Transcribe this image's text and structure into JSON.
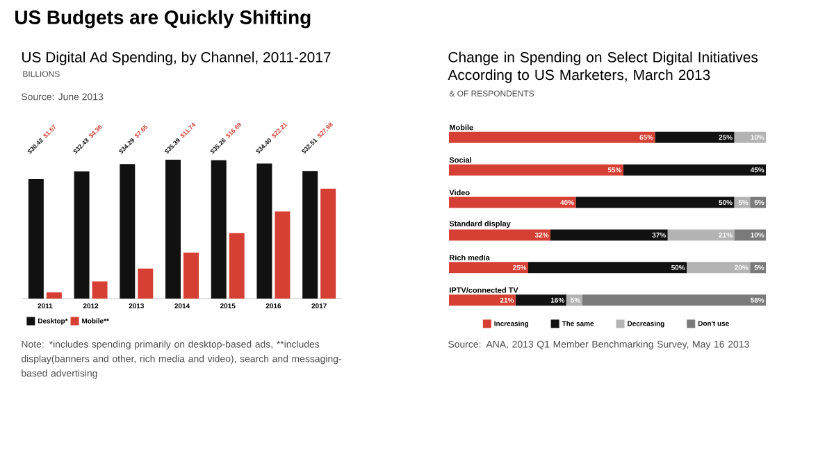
{
  "chart_data": [
    {
      "type": "bar",
      "title": "US Digital Ad Spending, by Channel, 2011-2017",
      "subtitle": "BILLIONS",
      "categories": [
        "2011",
        "2012",
        "2013",
        "2014",
        "2015",
        "2016",
        "2017"
      ],
      "series": [
        {
          "name": "Desktop*",
          "color": "#111111",
          "values": [
            30.42,
            32.43,
            34.29,
            35.39,
            35.26,
            34.4,
            32.51
          ],
          "value_labels": [
            "$30.42",
            "$32.43",
            "$34.29",
            "$35.39",
            "$35.26",
            "$34.40",
            "$32.51"
          ]
        },
        {
          "name": "Mobile**",
          "color": "#d63f33",
          "values": [
            1.57,
            4.36,
            7.65,
            11.74,
            16.69,
            22.21,
            27.98
          ],
          "value_labels": [
            "$1.57",
            "$4.36",
            "$7.65",
            "$11.74",
            "$16.69",
            "$22.21",
            "$27.98"
          ]
        }
      ],
      "legend": "bottom left",
      "annotations": [
        "US Budgets are Quickly Shifting",
        "Source: June 2013",
        "Note: *includes spending primarily on desktop-based ads, **includes display(banners and other, rich media and video), search and messaging-based advertising"
      ]
    },
    {
      "type": "bar",
      "orientation": "horizontal",
      "stacked": true,
      "title": "Change in Spending on Select Digital Initiatives According to US Marketers, March 2013",
      "subtitle": "& OF RESPONDENTS",
      "categories": [
        "Mobile",
        "Social",
        "Video",
        "Standard display",
        "Rich media",
        "IPTV/connected TV"
      ],
      "series": [
        {
          "name": "Increasing",
          "color": "#d63f33",
          "values": [
            65,
            55,
            40,
            32,
            25,
            21
          ],
          "value_labels": [
            "65%",
            "55%",
            "40%",
            "32%",
            "25%",
            "21%"
          ]
        },
        {
          "name": "The same",
          "color": "#111111",
          "values": [
            25,
            45,
            50,
            37,
            50,
            16
          ],
          "value_labels": [
            "25%",
            "45%",
            "50%",
            "37%",
            "50%",
            "16%"
          ]
        },
        {
          "name": "Decreasing",
          "color": "#b3b3b3",
          "values": [
            10,
            null,
            5,
            21,
            20,
            5
          ],
          "value_labels": [
            "10%",
            null,
            "5%",
            "21%",
            "20%",
            "5%"
          ]
        },
        {
          "name": "Don't use",
          "color": "#7a7a7a",
          "values": [
            null,
            null,
            5,
            10,
            5,
            58
          ],
          "value_labels": [
            null,
            null,
            "5%",
            "10%",
            "5%",
            "58%"
          ]
        }
      ],
      "legend": "bottom",
      "annotations": [
        "Source: ANA, 2013 Q1 Member Benchmarking Survey, May 16 2013"
      ]
    }
  ]
}
